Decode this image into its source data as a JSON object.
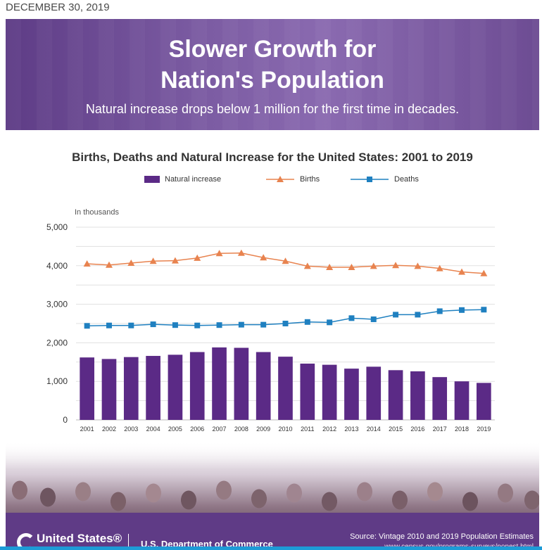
{
  "dateline": "DECEMBER 30, 2019",
  "header": {
    "title_line1": "Slower Growth for",
    "title_line2": "Nation's Population",
    "subtitle": "Natural increase drops below 1 million for the first time in decades."
  },
  "footer": {
    "agency": "United States®",
    "department": "U.S. Department of Commerce",
    "source": "Source: Vintage 2010 and 2019 Population Estimates",
    "source_url": "www.census.gov/programs-surveys/popest.html"
  },
  "colors": {
    "bar": "#5b2a86",
    "births": "#e8834f",
    "deaths": "#1f80c0",
    "grid": "#e1e1e1"
  },
  "chart_data": {
    "type": "bar",
    "title": "Births, Deaths and Natural Increase for the United States: 2001 to 2019",
    "unit_label": "In thousands",
    "xlabel": "",
    "ylabel": "",
    "ylim": [
      0,
      5000
    ],
    "yticks": [
      0,
      1000,
      2000,
      3000,
      4000,
      5000
    ],
    "ytick_labels": [
      "0",
      "1,000",
      "2,000",
      "3,000",
      "4,000",
      "5,000"
    ],
    "categories": [
      "2001",
      "2002",
      "2003",
      "2004",
      "2005",
      "2006",
      "2007",
      "2008",
      "2009",
      "2010",
      "2011",
      "2012",
      "2013",
      "2014",
      "2015",
      "2016",
      "2017",
      "2018",
      "2019"
    ],
    "legend": [
      "Natural increase",
      "Births",
      "Deaths"
    ],
    "series": [
      {
        "name": "Natural increase",
        "type": "bar",
        "values": [
          1620,
          1580,
          1630,
          1660,
          1690,
          1760,
          1880,
          1870,
          1760,
          1640,
          1460,
          1430,
          1330,
          1380,
          1290,
          1260,
          1110,
          1000,
          960
        ]
      },
      {
        "name": "Births",
        "type": "line",
        "marker": "triangle",
        "values": [
          4050,
          4020,
          4070,
          4120,
          4130,
          4200,
          4320,
          4330,
          4210,
          4120,
          3990,
          3960,
          3960,
          3990,
          4010,
          3990,
          3930,
          3840,
          3800
        ]
      },
      {
        "name": "Deaths",
        "type": "line",
        "marker": "square",
        "values": [
          2440,
          2450,
          2450,
          2480,
          2460,
          2450,
          2460,
          2470,
          2470,
          2500,
          2540,
          2530,
          2640,
          2610,
          2730,
          2730,
          2820,
          2850,
          2860
        ]
      }
    ]
  }
}
